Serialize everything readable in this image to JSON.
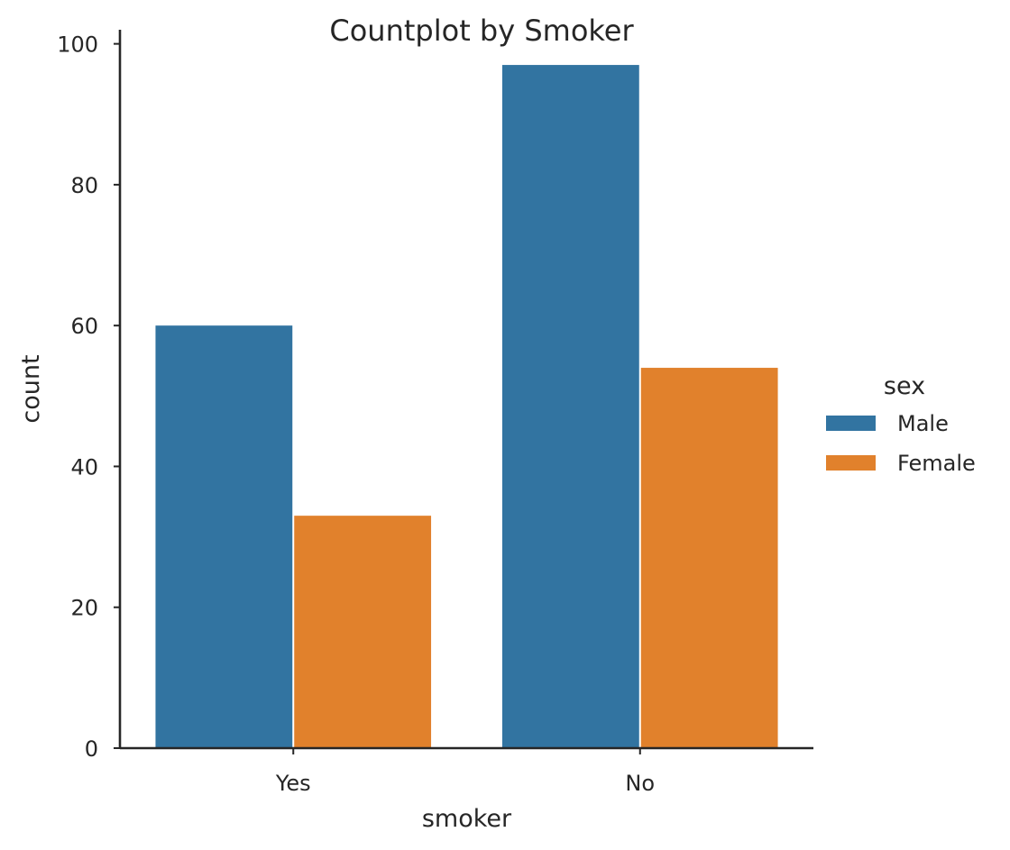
{
  "chart_data": {
    "type": "bar",
    "title": "Countplot by Smoker",
    "xlabel": "smoker",
    "ylabel": "count",
    "categories": [
      "Yes",
      "No"
    ],
    "series": [
      {
        "name": "Male",
        "color": "#3274a1",
        "values": [
          60,
          97
        ]
      },
      {
        "name": "Female",
        "color": "#e1812c",
        "values": [
          33,
          54
        ]
      }
    ],
    "ylim": [
      0,
      102
    ],
    "yticks": [
      0,
      20,
      40,
      60,
      80,
      100
    ],
    "grid": false,
    "legend": {
      "title": "sex",
      "position": "right"
    }
  }
}
